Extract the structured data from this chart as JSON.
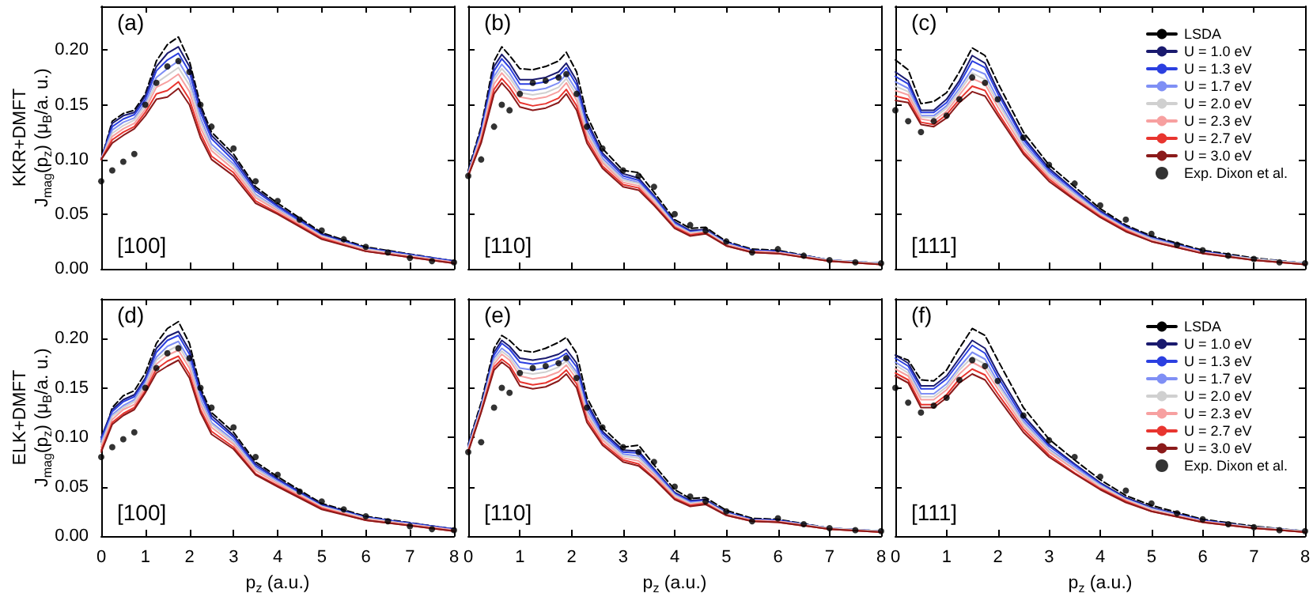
{
  "chart_data": [
    {
      "type": "line",
      "ylabel": "KKR+DMFT\nJ$_{mag}$(p$_{z}$) (μ$_{B}$/a. u.)",
      "annotations": [
        "(a)",
        "[100]"
      ],
      "xlim": [
        0,
        8
      ],
      "xticks": [
        0,
        1,
        2,
        3,
        4,
        5,
        6,
        7,
        8
      ],
      "ylim": [
        0,
        0.24
      ],
      "yticks": [
        {
          "value": 0,
          "label": "0.00"
        },
        {
          "value": 0.05,
          "label": "0.05"
        },
        {
          "value": 0.1,
          "label": "0.10"
        },
        {
          "value": 0.15,
          "label": "0.15"
        },
        {
          "value": 0.2,
          "label": "0.20"
        }
      ],
      "tick_labels": "y",
      "grid": false,
      "legend": false,
      "marker": "none",
      "x": [
        0,
        0.25,
        0.5,
        0.75,
        1,
        1.25,
        1.5,
        1.75,
        2,
        2.25,
        2.5,
        3,
        3.5,
        4,
        5,
        6,
        8
      ],
      "series": [
        {
          "color": "#000000",
          "line_style": "dashed",
          "values": [
            0.1,
            0.135,
            0.142,
            0.145,
            0.16,
            0.19,
            0.205,
            0.212,
            0.19,
            0.15,
            0.125,
            0.105,
            0.075,
            0.06,
            0.033,
            0.02,
            0.007
          ]
        },
        {
          "color": "#1a1a6e",
          "values": [
            0.1,
            0.133,
            0.14,
            0.143,
            0.158,
            0.185,
            0.197,
            0.203,
            0.185,
            0.147,
            0.122,
            0.102,
            0.073,
            0.058,
            0.032,
            0.019,
            0.007
          ]
        },
        {
          "color": "#2b3fe0",
          "values": [
            0.1,
            0.13,
            0.137,
            0.141,
            0.155,
            0.181,
            0.191,
            0.197,
            0.18,
            0.143,
            0.119,
            0.099,
            0.071,
            0.057,
            0.031,
            0.019,
            0.007
          ]
        },
        {
          "color": "#7f8ff5",
          "values": [
            0.1,
            0.127,
            0.134,
            0.138,
            0.152,
            0.175,
            0.183,
            0.19,
            0.173,
            0.138,
            0.114,
            0.096,
            0.068,
            0.055,
            0.03,
            0.018,
            0.006
          ]
        },
        {
          "color": "#d0d0d0",
          "values": [
            0.1,
            0.124,
            0.131,
            0.136,
            0.149,
            0.17,
            0.177,
            0.184,
            0.168,
            0.134,
            0.111,
            0.094,
            0.067,
            0.054,
            0.03,
            0.018,
            0.006
          ]
        },
        {
          "color": "#f7a0a0",
          "values": [
            0.1,
            0.121,
            0.128,
            0.133,
            0.146,
            0.166,
            0.171,
            0.178,
            0.162,
            0.129,
            0.108,
            0.091,
            0.065,
            0.053,
            0.029,
            0.017,
            0.006
          ]
        },
        {
          "color": "#e8352f",
          "values": [
            0.1,
            0.118,
            0.125,
            0.13,
            0.143,
            0.16,
            0.163,
            0.171,
            0.155,
            0.124,
            0.103,
            0.088,
            0.062,
            0.051,
            0.028,
            0.016,
            0.005
          ]
        },
        {
          "color": "#8b1a1a",
          "values": [
            0.1,
            0.115,
            0.122,
            0.128,
            0.14,
            0.155,
            0.157,
            0.165,
            0.15,
            0.12,
            0.1,
            0.085,
            0.06,
            0.05,
            0.027,
            0.016,
            0.005
          ]
        },
        {
          "type": "scatter",
          "marker": "circle",
          "color": "#000000",
          "x": [
            0,
            0.25,
            0.5,
            0.75,
            1,
            1.25,
            1.5,
            1.75,
            2,
            2.25,
            2.5,
            3,
            3.5,
            4,
            4.5,
            5,
            5.5,
            6,
            6.5,
            7,
            7.5,
            8
          ],
          "values": [
            0.08,
            0.09,
            0.098,
            0.105,
            0.15,
            0.17,
            0.185,
            0.19,
            0.18,
            0.15,
            0.13,
            0.11,
            0.08,
            0.062,
            0.045,
            0.035,
            0.027,
            0.02,
            0.015,
            0.01,
            0.007,
            0.006
          ]
        }
      ]
    },
    {
      "type": "line",
      "annotations": [
        "(b)",
        "[110]"
      ],
      "xlim": [
        0,
        8
      ],
      "xticks": [
        0,
        1,
        2,
        3,
        4,
        5,
        6,
        7,
        8
      ],
      "ylim": [
        0,
        0.24
      ],
      "yticks": [
        0,
        0.05,
        0.1,
        0.15,
        0.2
      ],
      "tick_labels": false,
      "grid": false,
      "legend": false,
      "marker": "none",
      "x": [
        0,
        0.25,
        0.5,
        0.65,
        0.8,
        1,
        1.25,
        1.5,
        1.75,
        1.9,
        2.1,
        2.3,
        2.6,
        3,
        3.3,
        3.6,
        4,
        4.3,
        4.6,
        5,
        5.5,
        6,
        7,
        8
      ],
      "series": [
        {
          "color": "#000000",
          "line_style": "dashed",
          "values": [
            0.09,
            0.13,
            0.19,
            0.203,
            0.195,
            0.183,
            0.182,
            0.185,
            0.19,
            0.198,
            0.18,
            0.14,
            0.11,
            0.09,
            0.088,
            0.07,
            0.045,
            0.037,
            0.038,
            0.025,
            0.018,
            0.017,
            0.008,
            0.005
          ]
        },
        {
          "color": "#1a1a6e",
          "values": [
            0.088,
            0.128,
            0.185,
            0.196,
            0.188,
            0.173,
            0.173,
            0.175,
            0.18,
            0.188,
            0.172,
            0.135,
            0.106,
            0.087,
            0.083,
            0.067,
            0.043,
            0.035,
            0.036,
            0.024,
            0.017,
            0.016,
            0.008,
            0.005
          ]
        },
        {
          "color": "#2b3fe0",
          "values": [
            0.088,
            0.126,
            0.181,
            0.192,
            0.184,
            0.169,
            0.169,
            0.171,
            0.176,
            0.184,
            0.168,
            0.132,
            0.104,
            0.085,
            0.081,
            0.066,
            0.042,
            0.034,
            0.035,
            0.024,
            0.017,
            0.016,
            0.008,
            0.005
          ]
        },
        {
          "color": "#7f8ff5",
          "values": [
            0.087,
            0.123,
            0.176,
            0.187,
            0.179,
            0.164,
            0.163,
            0.165,
            0.17,
            0.178,
            0.163,
            0.128,
            0.101,
            0.083,
            0.079,
            0.064,
            0.041,
            0.033,
            0.035,
            0.023,
            0.016,
            0.015,
            0.008,
            0.005
          ]
        },
        {
          "color": "#d0d0d0",
          "values": [
            0.087,
            0.122,
            0.173,
            0.183,
            0.175,
            0.161,
            0.159,
            0.161,
            0.166,
            0.174,
            0.159,
            0.125,
            0.099,
            0.081,
            0.078,
            0.063,
            0.04,
            0.033,
            0.034,
            0.023,
            0.016,
            0.015,
            0.008,
            0.005
          ]
        },
        {
          "color": "#f7a0a0",
          "values": [
            0.086,
            0.12,
            0.169,
            0.179,
            0.171,
            0.157,
            0.155,
            0.157,
            0.162,
            0.17,
            0.154,
            0.122,
            0.097,
            0.079,
            0.076,
            0.061,
            0.039,
            0.032,
            0.033,
            0.022,
            0.016,
            0.015,
            0.007,
            0.004
          ]
        },
        {
          "color": "#e8352f",
          "values": [
            0.085,
            0.117,
            0.164,
            0.174,
            0.166,
            0.152,
            0.149,
            0.151,
            0.156,
            0.164,
            0.149,
            0.118,
            0.094,
            0.077,
            0.074,
            0.059,
            0.038,
            0.031,
            0.033,
            0.021,
            0.015,
            0.014,
            0.007,
            0.004
          ]
        },
        {
          "color": "#8b1a1a",
          "values": [
            0.085,
            0.115,
            0.16,
            0.17,
            0.162,
            0.148,
            0.145,
            0.147,
            0.152,
            0.16,
            0.145,
            0.115,
            0.092,
            0.075,
            0.072,
            0.058,
            0.037,
            0.03,
            0.032,
            0.021,
            0.015,
            0.014,
            0.007,
            0.004
          ]
        },
        {
          "type": "scatter",
          "marker": "circle",
          "color": "#000000",
          "x": [
            0,
            0.25,
            0.5,
            0.65,
            0.8,
            1,
            1.25,
            1.5,
            1.75,
            1.9,
            2.1,
            2.3,
            2.6,
            3,
            3.3,
            3.6,
            4,
            4.3,
            4.6,
            5,
            5.5,
            6,
            6.5,
            7,
            7.5,
            8
          ],
          "values": [
            0.085,
            0.1,
            0.13,
            0.15,
            0.145,
            0.16,
            0.17,
            0.172,
            0.175,
            0.178,
            0.16,
            0.13,
            0.11,
            0.09,
            0.085,
            0.075,
            0.05,
            0.04,
            0.035,
            0.025,
            0.015,
            0.018,
            0.012,
            0.008,
            0.006,
            0.005
          ]
        }
      ]
    },
    {
      "type": "line",
      "annotations": [
        "(c)",
        "[111]"
      ],
      "xlim": [
        0,
        8
      ],
      "xticks": [
        0,
        1,
        2,
        3,
        4,
        5,
        6,
        7,
        8
      ],
      "ylim": [
        0,
        0.24
      ],
      "yticks": [
        0,
        0.05,
        0.1,
        0.15,
        0.2
      ],
      "tick_labels": false,
      "grid": false,
      "legend": "top right",
      "marker": "none",
      "x": [
        0,
        0.25,
        0.5,
        0.75,
        1,
        1.25,
        1.5,
        1.75,
        2,
        2.5,
        3,
        3.5,
        4,
        4.5,
        5,
        6,
        7,
        8
      ],
      "series": [
        {
          "name": "LSDA",
          "color": "#000000",
          "line_style": "dashed",
          "values": [
            0.191,
            0.182,
            0.151,
            0.153,
            0.161,
            0.18,
            0.202,
            0.195,
            0.17,
            0.125,
            0.095,
            0.075,
            0.055,
            0.04,
            0.03,
            0.017,
            0.01,
            0.005
          ]
        },
        {
          "name": "U = 1.0 eV",
          "color": "#1a1a6e",
          "values": [
            0.18,
            0.172,
            0.145,
            0.145,
            0.155,
            0.172,
            0.195,
            0.188,
            0.163,
            0.12,
            0.092,
            0.072,
            0.053,
            0.039,
            0.029,
            0.016,
            0.009,
            0.005
          ]
        },
        {
          "name": "U = 1.3 eV",
          "color": "#2b3fe0",
          "values": [
            0.176,
            0.169,
            0.143,
            0.143,
            0.152,
            0.169,
            0.19,
            0.184,
            0.16,
            0.118,
            0.09,
            0.071,
            0.052,
            0.038,
            0.028,
            0.016,
            0.009,
            0.005
          ]
        },
        {
          "name": "U = 1.7 eV",
          "color": "#7f8ff5",
          "values": [
            0.171,
            0.165,
            0.14,
            0.14,
            0.149,
            0.165,
            0.183,
            0.178,
            0.155,
            0.115,
            0.088,
            0.069,
            0.051,
            0.037,
            0.028,
            0.015,
            0.009,
            0.005
          ]
        },
        {
          "name": "U = 2.0 eV",
          "color": "#d0d0d0",
          "values": [
            0.167,
            0.162,
            0.139,
            0.138,
            0.147,
            0.162,
            0.179,
            0.173,
            0.152,
            0.113,
            0.086,
            0.068,
            0.05,
            0.037,
            0.027,
            0.015,
            0.009,
            0.005
          ]
        },
        {
          "name": "U = 2.3 eV",
          "color": "#f7a0a0",
          "values": [
            0.163,
            0.159,
            0.137,
            0.135,
            0.144,
            0.159,
            0.174,
            0.169,
            0.148,
            0.11,
            0.084,
            0.066,
            0.049,
            0.036,
            0.026,
            0.015,
            0.008,
            0.004
          ]
        },
        {
          "name": "U = 2.7 eV",
          "color": "#e8352f",
          "values": [
            0.158,
            0.155,
            0.134,
            0.132,
            0.141,
            0.155,
            0.167,
            0.163,
            0.143,
            0.107,
            0.082,
            0.064,
            0.048,
            0.035,
            0.025,
            0.014,
            0.008,
            0.004
          ]
        },
        {
          "name": "U = 3.0 eV",
          "color": "#8b1a1a",
          "values": [
            0.154,
            0.152,
            0.132,
            0.13,
            0.138,
            0.152,
            0.162,
            0.158,
            0.14,
            0.105,
            0.08,
            0.063,
            0.047,
            0.034,
            0.025,
            0.014,
            0.008,
            0.004
          ]
        },
        {
          "name": "Exp. Dixon et al.",
          "type": "scatter",
          "marker": "circle",
          "color": "#000000",
          "x": [
            0,
            0.25,
            0.5,
            0.75,
            1,
            1.25,
            1.5,
            1.75,
            2,
            2.5,
            3,
            3.5,
            4,
            4.5,
            5,
            5.5,
            6,
            6.5,
            7,
            7.5,
            8
          ],
          "values": [
            0.145,
            0.135,
            0.125,
            0.135,
            0.14,
            0.155,
            0.175,
            0.17,
            0.155,
            0.12,
            0.095,
            0.078,
            0.058,
            0.045,
            0.032,
            0.022,
            0.017,
            0.012,
            0.009,
            0.006,
            0.005
          ]
        }
      ]
    },
    {
      "type": "line",
      "ylabel": "ELK+DMFT\nJ$_{mag}$(p$_{z}$) (μ$_{B}$/a. u.)",
      "xlabel": "p$_{z}$ (a.u.)",
      "annotations": [
        "(d)",
        "[100]"
      ],
      "xlim": [
        0,
        8
      ],
      "xticks": [
        0,
        1,
        2,
        3,
        4,
        5,
        6,
        7,
        8
      ],
      "ylim": [
        0,
        0.24
      ],
      "yticks": [
        {
          "value": 0,
          "label": "0.00"
        },
        {
          "value": 0.05,
          "label": "0.05"
        },
        {
          "value": 0.1,
          "label": "0.10"
        },
        {
          "value": 0.15,
          "label": "0.15"
        },
        {
          "value": 0.2,
          "label": "0.20"
        }
      ],
      "grid": false,
      "legend": false,
      "marker": "none",
      "x": [
        0,
        0.25,
        0.5,
        0.75,
        1,
        1.25,
        1.5,
        1.75,
        2,
        2.25,
        2.5,
        3,
        3.5,
        4,
        5,
        6,
        8
      ],
      "series": [
        {
          "color": "#000000",
          "line_style": "dashed",
          "values": [
            0.095,
            0.13,
            0.142,
            0.147,
            0.165,
            0.195,
            0.21,
            0.217,
            0.195,
            0.15,
            0.125,
            0.105,
            0.075,
            0.06,
            0.033,
            0.02,
            0.007
          ]
        },
        {
          "color": "#1a1a6e",
          "values": [
            0.1,
            0.128,
            0.138,
            0.143,
            0.16,
            0.19,
            0.202,
            0.207,
            0.188,
            0.147,
            0.122,
            0.102,
            0.073,
            0.058,
            0.032,
            0.019,
            0.007
          ]
        },
        {
          "color": "#2b3fe0",
          "values": [
            0.098,
            0.126,
            0.136,
            0.141,
            0.158,
            0.186,
            0.198,
            0.203,
            0.184,
            0.144,
            0.119,
            0.1,
            0.071,
            0.057,
            0.031,
            0.019,
            0.007
          ]
        },
        {
          "color": "#7f8ff5",
          "values": [
            0.095,
            0.123,
            0.132,
            0.138,
            0.155,
            0.181,
            0.192,
            0.197,
            0.178,
            0.139,
            0.115,
            0.097,
            0.069,
            0.055,
            0.03,
            0.018,
            0.006
          ]
        },
        {
          "color": "#d0d0d0",
          "values": [
            0.093,
            0.121,
            0.13,
            0.136,
            0.153,
            0.178,
            0.187,
            0.193,
            0.174,
            0.136,
            0.113,
            0.095,
            0.068,
            0.054,
            0.03,
            0.018,
            0.006
          ]
        },
        {
          "color": "#f7a0a0",
          "values": [
            0.09,
            0.118,
            0.128,
            0.133,
            0.15,
            0.174,
            0.183,
            0.188,
            0.17,
            0.133,
            0.11,
            0.093,
            0.066,
            0.053,
            0.029,
            0.017,
            0.006
          ]
        },
        {
          "color": "#e8352f",
          "values": [
            0.087,
            0.115,
            0.124,
            0.13,
            0.147,
            0.169,
            0.177,
            0.182,
            0.164,
            0.128,
            0.106,
            0.09,
            0.063,
            0.051,
            0.028,
            0.016,
            0.005
          ]
        },
        {
          "color": "#8b1a1a",
          "values": [
            0.085,
            0.113,
            0.122,
            0.128,
            0.145,
            0.165,
            0.172,
            0.178,
            0.16,
            0.125,
            0.103,
            0.088,
            0.062,
            0.05,
            0.027,
            0.016,
            0.005
          ]
        },
        {
          "type": "scatter",
          "marker": "circle",
          "color": "#000000",
          "x": [
            0,
            0.25,
            0.5,
            0.75,
            1,
            1.25,
            1.5,
            1.75,
            2,
            2.25,
            2.5,
            3,
            3.5,
            4,
            4.5,
            5,
            5.5,
            6,
            6.5,
            7,
            7.5,
            8
          ],
          "values": [
            0.08,
            0.09,
            0.098,
            0.105,
            0.15,
            0.17,
            0.185,
            0.19,
            0.18,
            0.15,
            0.13,
            0.11,
            0.08,
            0.062,
            0.045,
            0.035,
            0.027,
            0.02,
            0.015,
            0.01,
            0.007,
            0.006
          ]
        }
      ]
    },
    {
      "type": "line",
      "xlabel": "p$_{z}$ (a.u.)",
      "annotations": [
        "(e)",
        "[110]"
      ],
      "xlim": [
        0,
        8
      ],
      "xticks": [
        0,
        1,
        2,
        3,
        4,
        5,
        6,
        7,
        8
      ],
      "ylim": [
        0,
        0.24
      ],
      "yticks": [
        0,
        0.05,
        0.1,
        0.15,
        0.2
      ],
      "tick_labels": "x",
      "grid": false,
      "legend": false,
      "marker": "none",
      "x": [
        0,
        0.25,
        0.5,
        0.65,
        0.8,
        1,
        1.25,
        1.5,
        1.75,
        1.9,
        2.1,
        2.3,
        2.6,
        3,
        3.3,
        3.6,
        4,
        4.3,
        4.6,
        5,
        5.5,
        6,
        7,
        8
      ],
      "series": [
        {
          "color": "#000000",
          "line_style": "dashed",
          "values": [
            0.093,
            0.135,
            0.19,
            0.203,
            0.198,
            0.188,
            0.186,
            0.19,
            0.196,
            0.201,
            0.185,
            0.14,
            0.11,
            0.09,
            0.092,
            0.072,
            0.047,
            0.038,
            0.039,
            0.026,
            0.018,
            0.017,
            0.008,
            0.005
          ]
        },
        {
          "color": "#1a1a6e",
          "values": [
            0.092,
            0.132,
            0.186,
            0.198,
            0.192,
            0.18,
            0.178,
            0.18,
            0.184,
            0.189,
            0.175,
            0.135,
            0.106,
            0.087,
            0.086,
            0.068,
            0.044,
            0.036,
            0.037,
            0.024,
            0.017,
            0.016,
            0.008,
            0.005
          ]
        },
        {
          "color": "#2b3fe0",
          "values": [
            0.091,
            0.131,
            0.183,
            0.195,
            0.189,
            0.176,
            0.174,
            0.176,
            0.18,
            0.185,
            0.171,
            0.132,
            0.104,
            0.085,
            0.084,
            0.067,
            0.043,
            0.035,
            0.036,
            0.024,
            0.017,
            0.016,
            0.008,
            0.005
          ]
        },
        {
          "color": "#7f8ff5",
          "values": [
            0.09,
            0.13,
            0.18,
            0.19,
            0.184,
            0.17,
            0.168,
            0.17,
            0.175,
            0.18,
            0.166,
            0.128,
            0.101,
            0.083,
            0.081,
            0.065,
            0.042,
            0.034,
            0.035,
            0.023,
            0.016,
            0.015,
            0.008,
            0.005
          ]
        },
        {
          "color": "#d0d0d0",
          "values": [
            0.089,
            0.129,
            0.177,
            0.187,
            0.181,
            0.166,
            0.164,
            0.166,
            0.171,
            0.177,
            0.163,
            0.125,
            0.099,
            0.081,
            0.079,
            0.063,
            0.041,
            0.033,
            0.035,
            0.023,
            0.016,
            0.015,
            0.008,
            0.005
          ]
        },
        {
          "color": "#f7a0a0",
          "values": [
            0.087,
            0.127,
            0.174,
            0.184,
            0.178,
            0.162,
            0.159,
            0.161,
            0.166,
            0.173,
            0.159,
            0.122,
            0.097,
            0.079,
            0.076,
            0.062,
            0.039,
            0.032,
            0.034,
            0.022,
            0.016,
            0.015,
            0.007,
            0.004
          ]
        },
        {
          "color": "#e8352f",
          "values": [
            0.086,
            0.126,
            0.171,
            0.179,
            0.173,
            0.156,
            0.153,
            0.155,
            0.161,
            0.168,
            0.154,
            0.118,
            0.094,
            0.077,
            0.073,
            0.059,
            0.038,
            0.031,
            0.033,
            0.021,
            0.015,
            0.014,
            0.007,
            0.004
          ]
        },
        {
          "color": "#8b1a1a",
          "values": [
            0.085,
            0.125,
            0.168,
            0.176,
            0.17,
            0.152,
            0.149,
            0.151,
            0.157,
            0.164,
            0.15,
            0.115,
            0.092,
            0.075,
            0.071,
            0.058,
            0.037,
            0.03,
            0.032,
            0.021,
            0.015,
            0.014,
            0.007,
            0.004
          ]
        },
        {
          "type": "scatter",
          "marker": "circle",
          "color": "#000000",
          "x": [
            0,
            0.25,
            0.5,
            0.65,
            0.8,
            1,
            1.25,
            1.5,
            1.75,
            1.9,
            2.1,
            2.3,
            2.6,
            3,
            3.3,
            3.6,
            4,
            4.3,
            4.6,
            5,
            5.5,
            6,
            6.5,
            7,
            7.5,
            8
          ],
          "values": [
            0.085,
            0.095,
            0.13,
            0.15,
            0.145,
            0.165,
            0.17,
            0.172,
            0.175,
            0.18,
            0.16,
            0.13,
            0.11,
            0.09,
            0.085,
            0.075,
            0.05,
            0.04,
            0.035,
            0.025,
            0.015,
            0.018,
            0.012,
            0.008,
            0.006,
            0.005
          ]
        }
      ]
    },
    {
      "type": "line",
      "xlabel": "p$_{z}$ (a.u.)",
      "annotations": [
        "(f)",
        "[111]"
      ],
      "xlim": [
        0,
        8
      ],
      "xticks": [
        0,
        1,
        2,
        3,
        4,
        5,
        6,
        7,
        8
      ],
      "ylim": [
        0,
        0.24
      ],
      "yticks": [
        0,
        0.05,
        0.1,
        0.15,
        0.2
      ],
      "tick_labels": "x",
      "grid": false,
      "legend": "top right",
      "marker": "none",
      "x": [
        0,
        0.25,
        0.5,
        0.75,
        1,
        1.25,
        1.5,
        1.75,
        2,
        2.5,
        3,
        3.5,
        4,
        4.5,
        5,
        6,
        7,
        8
      ],
      "series": [
        {
          "name": "LSDA",
          "color": "#000000",
          "line_style": "dashed",
          "values": [
            0.183,
            0.178,
            0.158,
            0.157,
            0.168,
            0.19,
            0.21,
            0.203,
            0.178,
            0.13,
            0.098,
            0.077,
            0.057,
            0.041,
            0.031,
            0.017,
            0.01,
            0.005
          ]
        },
        {
          "name": "U = 1.0 eV",
          "color": "#1a1a6e",
          "values": [
            0.183,
            0.175,
            0.152,
            0.152,
            0.162,
            0.18,
            0.198,
            0.19,
            0.165,
            0.122,
            0.093,
            0.073,
            0.054,
            0.039,
            0.029,
            0.016,
            0.009,
            0.005
          ]
        },
        {
          "name": "U = 1.3 eV",
          "color": "#2b3fe0",
          "values": [
            0.18,
            0.172,
            0.149,
            0.149,
            0.159,
            0.176,
            0.193,
            0.185,
            0.161,
            0.119,
            0.091,
            0.072,
            0.053,
            0.038,
            0.028,
            0.016,
            0.009,
            0.005
          ]
        },
        {
          "name": "U = 1.7 eV",
          "color": "#7f8ff5",
          "values": [
            0.176,
            0.168,
            0.144,
            0.144,
            0.154,
            0.171,
            0.186,
            0.179,
            0.156,
            0.116,
            0.088,
            0.07,
            0.052,
            0.037,
            0.028,
            0.015,
            0.009,
            0.005
          ]
        },
        {
          "name": "U = 2.0 eV",
          "color": "#d0d0d0",
          "values": [
            0.173,
            0.165,
            0.141,
            0.141,
            0.151,
            0.168,
            0.181,
            0.174,
            0.153,
            0.114,
            0.087,
            0.068,
            0.051,
            0.037,
            0.027,
            0.015,
            0.009,
            0.005
          ]
        },
        {
          "name": "U = 2.3 eV",
          "color": "#f7a0a0",
          "values": [
            0.169,
            0.162,
            0.138,
            0.138,
            0.148,
            0.164,
            0.176,
            0.169,
            0.149,
            0.111,
            0.085,
            0.067,
            0.049,
            0.036,
            0.026,
            0.015,
            0.008,
            0.004
          ]
        },
        {
          "name": "U = 2.7 eV",
          "color": "#e8352f",
          "values": [
            0.165,
            0.158,
            0.133,
            0.133,
            0.143,
            0.159,
            0.169,
            0.163,
            0.144,
            0.108,
            0.082,
            0.064,
            0.048,
            0.035,
            0.025,
            0.014,
            0.008,
            0.004
          ]
        },
        {
          "name": "U = 3.0 eV",
          "color": "#8b1a1a",
          "values": [
            0.162,
            0.155,
            0.13,
            0.13,
            0.14,
            0.155,
            0.164,
            0.158,
            0.14,
            0.105,
            0.08,
            0.063,
            0.047,
            0.034,
            0.025,
            0.014,
            0.008,
            0.004
          ]
        },
        {
          "name": "Exp. Dixon et al.",
          "type": "scatter",
          "marker": "circle",
          "color": "#000000",
          "x": [
            0,
            0.25,
            0.5,
            0.75,
            1,
            1.25,
            1.5,
            1.75,
            2,
            2.5,
            3,
            3.5,
            4,
            4.5,
            5,
            5.5,
            6,
            6.5,
            7,
            7.5,
            8
          ],
          "values": [
            0.15,
            0.135,
            0.125,
            0.132,
            0.14,
            0.158,
            0.178,
            0.172,
            0.157,
            0.122,
            0.097,
            0.08,
            0.06,
            0.046,
            0.033,
            0.023,
            0.017,
            0.012,
            0.009,
            0.006,
            0.005
          ]
        }
      ]
    }
  ]
}
